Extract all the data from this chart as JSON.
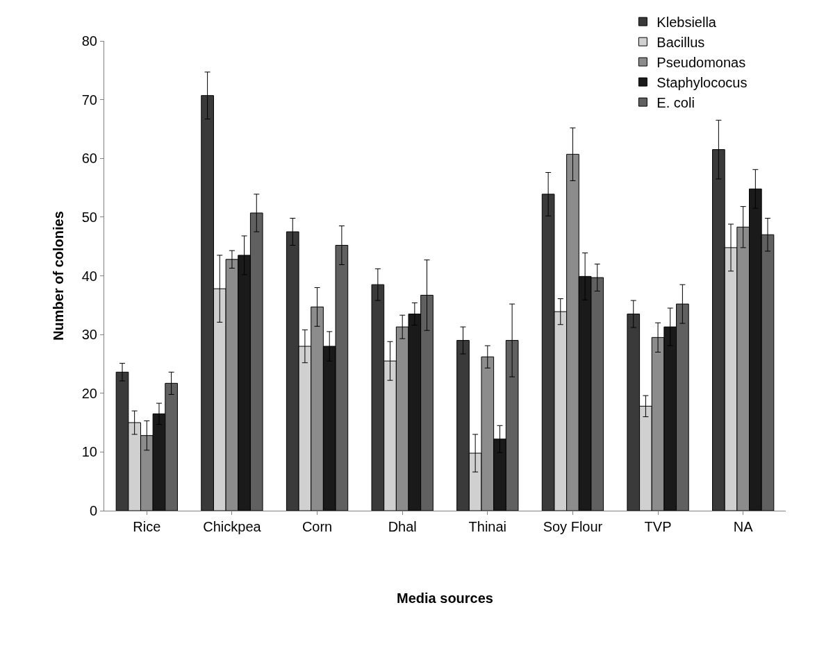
{
  "chart_data": {
    "type": "bar",
    "xlabel": "Media sources",
    "ylabel": "Number of colonies",
    "categories": [
      "Rice",
      "Chickpea",
      "Corn",
      "Dhal",
      "Thinai",
      "Soy Flour",
      "TVP",
      "NA"
    ],
    "series": [
      {
        "name": "Klebsiella",
        "color": "#3a3a3a",
        "values": [
          23.6,
          70.7,
          47.5,
          38.5,
          29,
          53.9,
          33.5,
          61.5
        ],
        "errors": [
          1.5,
          4,
          2.3,
          2.7,
          2.3,
          3.7,
          2.3,
          5
        ]
      },
      {
        "name": "Bacillus",
        "color": "#d0d0d0",
        "values": [
          15,
          37.8,
          28,
          25.5,
          9.8,
          33.9,
          17.8,
          44.8
        ],
        "errors": [
          2,
          5.7,
          2.8,
          3.3,
          3.2,
          2.2,
          1.8,
          4
        ]
      },
      {
        "name": "Pseudomonas",
        "color": "#8c8c8c",
        "values": [
          12.8,
          42.8,
          34.7,
          31.3,
          26.2,
          60.7,
          29.5,
          48.3
        ],
        "errors": [
          2.5,
          1.5,
          3.3,
          2,
          1.9,
          4.5,
          2.5,
          3.5
        ]
      },
      {
        "name": "Staphylococus",
        "color": "#1a1a1a",
        "values": [
          16.5,
          43.5,
          28,
          33.5,
          12.2,
          39.9,
          31.3,
          54.8
        ],
        "errors": [
          1.8,
          3.3,
          2.5,
          1.9,
          2.3,
          4,
          3.2,
          3.3
        ]
      },
      {
        "name": "E. coli",
        "color": "#606060",
        "values": [
          21.7,
          50.7,
          45.2,
          36.7,
          29,
          39.7,
          35.2,
          47
        ],
        "errors": [
          1.9,
          3.2,
          3.3,
          6,
          6.2,
          2.3,
          3.3,
          2.8
        ]
      }
    ],
    "ylim": [
      0,
      80
    ],
    "yticks": [
      0,
      10,
      20,
      30,
      40,
      50,
      60,
      70,
      80
    ],
    "legend": "top right"
  }
}
